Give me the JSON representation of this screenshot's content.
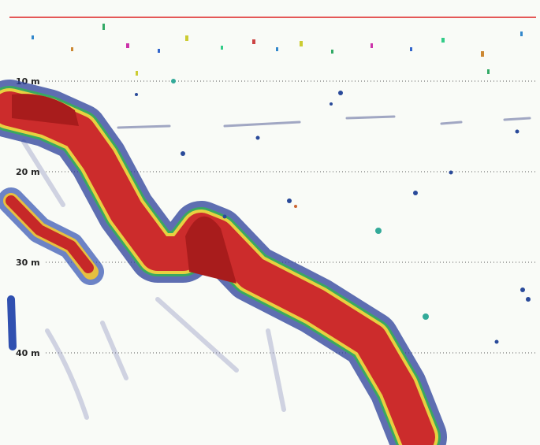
{
  "depth_labels": [
    "10 m",
    "20 m",
    "30 m",
    "40 m"
  ]
}
